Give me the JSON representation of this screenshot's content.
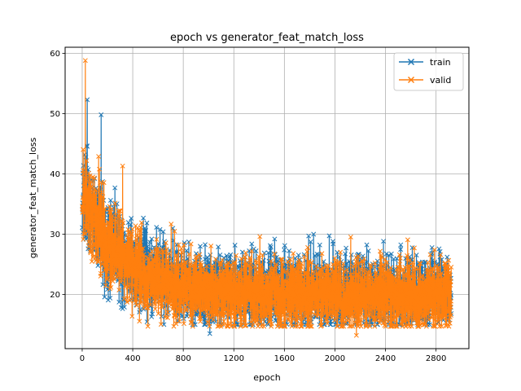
{
  "chart_data": {
    "type": "line",
    "title": "epoch vs generator_feat_match_loss",
    "xlabel": "epoch",
    "ylabel": "generator_feat_match_loss",
    "xlim": [
      -135,
      3060
    ],
    "ylim": [
      11,
      61
    ],
    "xticks": [
      0,
      400,
      800,
      1200,
      1600,
      2000,
      2400,
      2800
    ],
    "yticks": [
      20,
      30,
      40,
      50,
      60
    ],
    "grid": true,
    "legend_position": "top-right",
    "marker": "x",
    "epochs": [
      1,
      2920
    ],
    "series": [
      {
        "name": "train",
        "color": "#1f77b4",
        "approx_trend": {
          "start": 36,
          "plateau": 20.3,
          "decay_epochs": 320
        },
        "approx_noise_std": 3.0,
        "approx_range": [
          13.5,
          52.3
        ],
        "highlight_points": [
          [
            40,
            52.3
          ],
          [
            150,
            49.8
          ],
          [
            1010,
            13.5
          ],
          [
            1880,
            28.2
          ]
        ]
      },
      {
        "name": "valid",
        "color": "#ff7f0e",
        "approx_trend": {
          "start": 37,
          "plateau": 20.0,
          "decay_epochs": 300
        },
        "approx_noise_std": 2.8,
        "approx_range": [
          13.2,
          58.8
        ],
        "highlight_points": [
          [
            25,
            58.8
          ],
          [
            320,
            41.3
          ],
          [
            2170,
            13.2
          ],
          [
            1780,
            27.1
          ]
        ]
      }
    ]
  }
}
